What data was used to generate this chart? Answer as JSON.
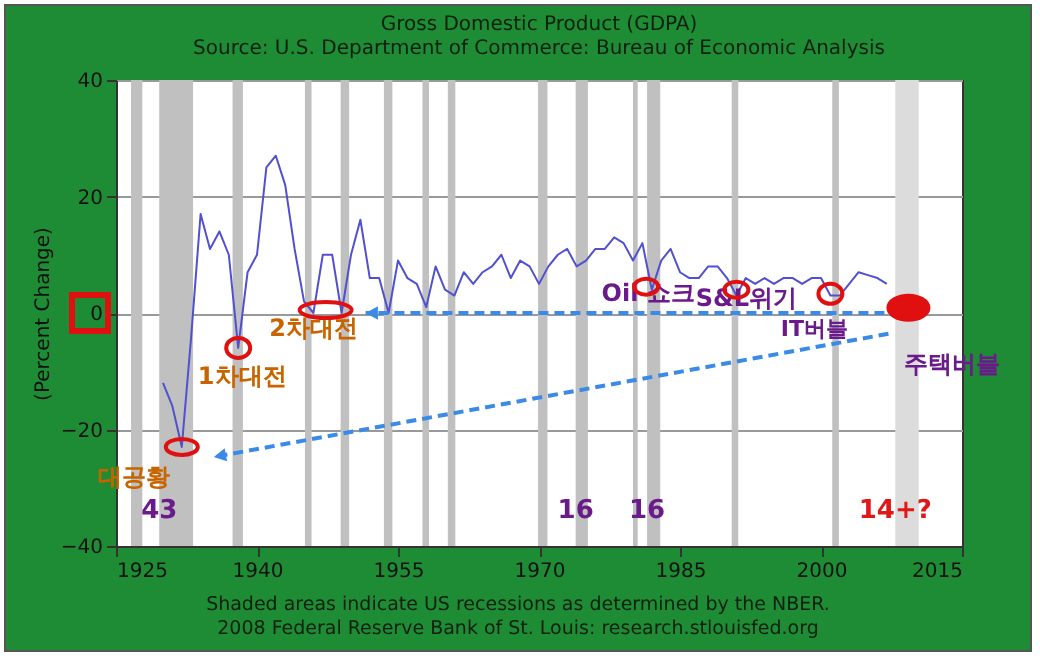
{
  "chart_data": {
    "type": "line",
    "title": "Gross Domestic Product (GDPA)",
    "subtitle": "Source: U.S. Department of Commerce: Bureau of Economic Analysis",
    "ylabel": "(Percent Change)",
    "x": [
      1930,
      1931,
      1932,
      1933,
      1934,
      1935,
      1936,
      1937,
      1938,
      1939,
      1940,
      1941,
      1942,
      1943,
      1944,
      1945,
      1946,
      1947,
      1948,
      1949,
      1950,
      1951,
      1952,
      1953,
      1954,
      1955,
      1956,
      1957,
      1958,
      1959,
      1960,
      1961,
      1962,
      1963,
      1964,
      1965,
      1966,
      1967,
      1968,
      1969,
      1970,
      1971,
      1972,
      1973,
      1974,
      1975,
      1976,
      1977,
      1978,
      1979,
      1980,
      1981,
      1982,
      1983,
      1984,
      1985,
      1986,
      1987,
      1988,
      1989,
      1990,
      1991,
      1992,
      1993,
      1994,
      1995,
      1996,
      1997,
      1998,
      1999,
      2000,
      2001,
      2002,
      2003,
      2004,
      2005,
      2006,
      2007
    ],
    "series": [
      {
        "color": "#5050d0",
        "values": [
          -12,
          -16,
          -23,
          -4,
          17,
          11,
          14,
          10,
          -6,
          7,
          10,
          25,
          27,
          22,
          11,
          2,
          0,
          10,
          10,
          0,
          10,
          16,
          6,
          6,
          0,
          9,
          6,
          5,
          1,
          8,
          4,
          3,
          7,
          5,
          7,
          8,
          10,
          6,
          9,
          8,
          5,
          8,
          10,
          11,
          8,
          9,
          11,
          11,
          13,
          12,
          9,
          12,
          4,
          9,
          11,
          7,
          6,
          6,
          8,
          8,
          6,
          3,
          6,
          5,
          6,
          5,
          6,
          6,
          5,
          6,
          6,
          3,
          3,
          5,
          7,
          6.5,
          6,
          5
        ]
      }
    ],
    "xlim": [
      1925,
      2015
    ],
    "xticks": [
      1925,
      1940,
      1955,
      1970,
      1985,
      2000,
      2015
    ],
    "ylim": [
      -40,
      40
    ],
    "yticks": [
      -40,
      -20,
      0,
      20,
      40
    ],
    "grid": "y",
    "bands": [
      {
        "axis": "x",
        "from": 1926.6,
        "to": 1927.8,
        "color": "#c0c0c0"
      },
      {
        "axis": "x",
        "from": 1929.6,
        "to": 1933.2,
        "color": "#c0c0c0",
        "label": "43"
      },
      {
        "axis": "x",
        "from": 1937.4,
        "to": 1938.5,
        "color": "#c0c0c0"
      },
      {
        "axis": "x",
        "from": 1945.1,
        "to": 1945.8,
        "color": "#c0c0c0"
      },
      {
        "axis": "x",
        "from": 1948.9,
        "to": 1949.8,
        "color": "#c0c0c0"
      },
      {
        "axis": "x",
        "from": 1953.5,
        "to": 1954.4,
        "color": "#c0c0c0"
      },
      {
        "axis": "x",
        "from": 1957.6,
        "to": 1958.3,
        "color": "#c0c0c0"
      },
      {
        "axis": "x",
        "from": 1960.3,
        "to": 1961.1,
        "color": "#c0c0c0"
      },
      {
        "axis": "x",
        "from": 1969.9,
        "to": 1970.9,
        "color": "#c0c0c0"
      },
      {
        "axis": "x",
        "from": 1973.9,
        "to": 1975.2,
        "color": "#c0c0c0",
        "label": "16"
      },
      {
        "axis": "x",
        "from": 1980.0,
        "to": 1980.5,
        "color": "#c0c0c0"
      },
      {
        "axis": "x",
        "from": 1981.5,
        "to": 1982.9,
        "color": "#c0c0c0",
        "label": "16"
      },
      {
        "axis": "x",
        "from": 1990.5,
        "to": 1991.2,
        "color": "#c0c0c0"
      },
      {
        "axis": "x",
        "from": 2001.2,
        "to": 2001.9,
        "color": "#c0c0c0"
      },
      {
        "axis": "x",
        "from": 2007.9,
        "to": 2010.4,
        "color": "#dcdcdc",
        "label": "14+?"
      }
    ],
    "annotations": [
      {
        "text": "대공황",
        "x": 1932,
        "y": -23
      },
      {
        "text": "1차대전",
        "x": 1938,
        "y": -6
      },
      {
        "text": "2차대전",
        "x": 1947.3,
        "y": 0.5
      },
      {
        "text": "Oil 쇼크",
        "x": 1981.4,
        "y": 4.5
      },
      {
        "text": "S&L위기",
        "x": 1991,
        "y": 4
      },
      {
        "text": "IT버블",
        "x": 2001,
        "y": 3.3
      },
      {
        "text": "주택버블",
        "x": 2009.3,
        "y": 0.9
      },
      "Shaded areas indicate US recessions as determined by the NBER.",
      "2008 Federal Reserve Bank of St. Louis: research.stlouisfed.org"
    ]
  }
}
